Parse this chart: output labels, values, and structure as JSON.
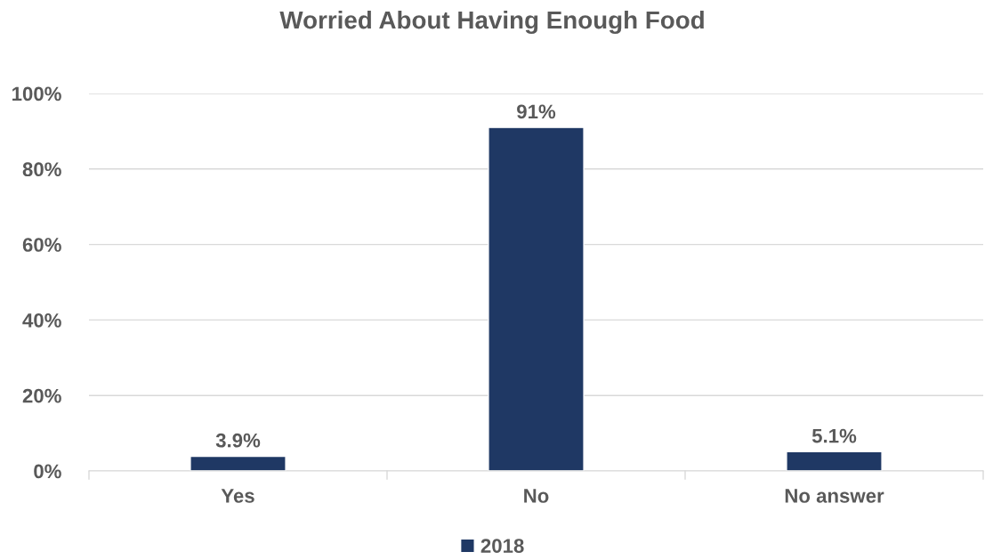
{
  "chart_data": {
    "type": "bar",
    "title": "Worried About Having Enough Food",
    "categories": [
      "Yes",
      "No",
      "No answer"
    ],
    "series": [
      {
        "name": "2018",
        "color": "#1f3864",
        "values": [
          3.9,
          91,
          5.1
        ],
        "value_labels": [
          "3.9%",
          "91%",
          "5.1%"
        ]
      }
    ],
    "ylim": [
      0,
      100
    ],
    "yticks": [
      {
        "value": 0,
        "label": "0%"
      },
      {
        "value": 20,
        "label": "20%"
      },
      {
        "value": 40,
        "label": "40%"
      },
      {
        "value": 60,
        "label": "60%"
      },
      {
        "value": 80,
        "label": "80%"
      },
      {
        "value": 100,
        "label": "100%"
      }
    ],
    "grid": "y",
    "legend": "bottom"
  }
}
